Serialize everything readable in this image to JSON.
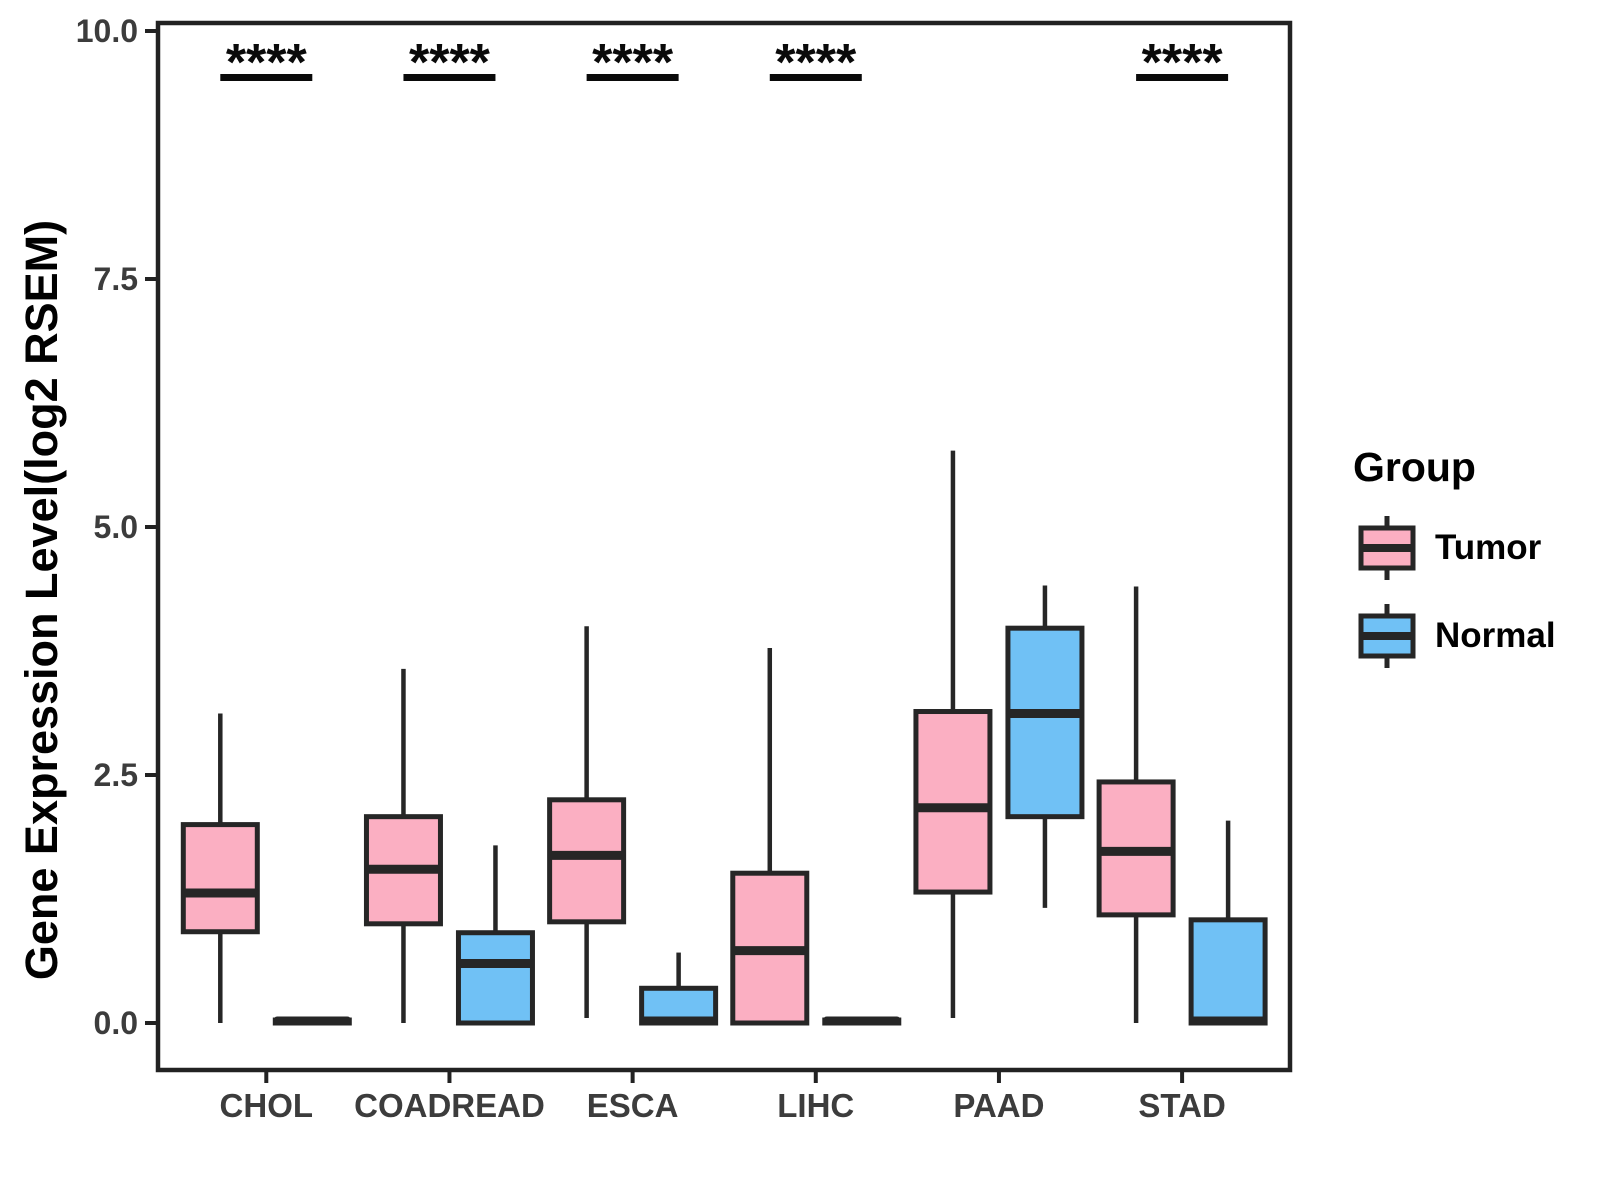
{
  "chart_data": {
    "type": "boxplot",
    "title": "",
    "xlabel": "",
    "ylabel": "Gene Expression Level(log2 RSEM)",
    "ylim": [
      0,
      10
    ],
    "yticks": [
      0.0,
      2.5,
      5.0,
      7.5,
      10.0
    ],
    "ytick_labels": [
      "0.0",
      "2.5",
      "5.0",
      "7.5",
      "10.0"
    ],
    "categories": [
      "CHOL",
      "COADREAD",
      "ESCA",
      "LIHC",
      "PAAD",
      "STAD"
    ],
    "stat_order": [
      "low_whisker",
      "q1",
      "median",
      "q3",
      "high_whisker"
    ],
    "series": [
      {
        "name": "Tumor",
        "color": "#FBAFC2",
        "stats": [
          [
            0,
            0.92,
            1.31,
            2.0,
            3.12
          ],
          [
            0,
            1.0,
            1.55,
            2.08,
            3.57
          ],
          [
            0.05,
            1.02,
            1.69,
            2.25,
            4.0
          ],
          [
            0,
            0,
            0.73,
            1.51,
            3.78
          ],
          [
            0.05,
            1.32,
            2.17,
            3.14,
            5.77
          ],
          [
            0,
            1.09,
            1.73,
            2.43,
            4.4
          ]
        ]
      },
      {
        "name": "Normal",
        "color": "#70C1F5",
        "stats": [
          [
            0,
            0,
            0.02,
            0.03,
            0.03
          ],
          [
            0,
            0,
            0.6,
            0.91,
            1.79
          ],
          [
            0,
            0,
            0.02,
            0.35,
            0.71
          ],
          [
            0,
            0,
            0.02,
            0.03,
            0.03
          ],
          [
            1.16,
            2.08,
            3.12,
            3.98,
            4.41
          ],
          [
            0,
            0,
            0.02,
            1.04,
            2.04
          ]
        ]
      }
    ],
    "significance": [
      "****",
      "****",
      "****",
      "****",
      null,
      "****"
    ],
    "legend": {
      "title": "Group",
      "position": "right",
      "entries": [
        {
          "label": "Tumor",
          "color": "#FBAFC2"
        },
        {
          "label": "Normal",
          "color": "#70C1F5"
        }
      ]
    },
    "style": {
      "box_border_color": "#262626",
      "panel_border_color": "#222222",
      "axis_text_color": "#3C3C3C",
      "significance_color": "#0A0A0A",
      "grid": "off"
    }
  }
}
